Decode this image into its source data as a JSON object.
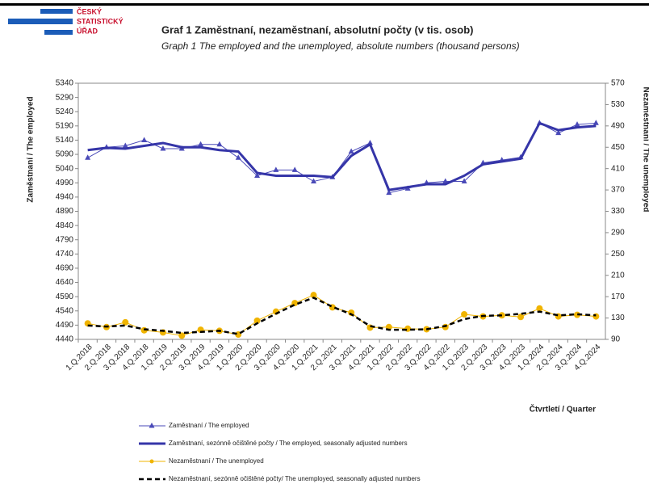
{
  "chart_data": {
    "type": "line",
    "logo": [
      "ČESKÝ",
      "STATISTICKÝ",
      "ÚŘAD"
    ],
    "title": "Graf 1  Zaměstnaní, nezaměstnaní, absolutní počty (v tis. osob)",
    "subtitle": "Graph 1  The employed and the unemployed, absolute numbers (thousand persons)",
    "ylabel": "Zaměstnaní / The employed",
    "y2label": "Nezaměstnaní / The unemployed",
    "xlabel": "Čtvrtletí  /  Quarter",
    "categories": [
      "1.Q.2018",
      "2.Q.2018",
      "3.Q.2018",
      "4.Q.2018",
      "1.Q.2019",
      "2.Q.2019",
      "3.Q.2019",
      "4.Q.2019",
      "1.Q.2020",
      "2.Q.2020",
      "3.Q.2020",
      "4.Q.2020",
      "1.Q.2021",
      "2.Q.2021",
      "3.Q.2021",
      "4.Q.2021",
      "1.Q.2022",
      "2.Q.2022",
      "3.Q.2022",
      "4.Q.2022",
      "1.Q.2023",
      "2.Q.2023",
      "3.Q.2023",
      "4.Q.2023",
      "1.Q.2024",
      "2.Q.2024",
      "3.Q.2024",
      "4.Q.2024"
    ],
    "ylim": [
      4440,
      5340
    ],
    "yticks": [
      4440,
      4490,
      4540,
      4590,
      4640,
      4690,
      4740,
      4790,
      4840,
      4890,
      4940,
      4990,
      5040,
      5090,
      5140,
      5190,
      5240,
      5290,
      5340
    ],
    "y2lim": [
      90,
      570
    ],
    "y2ticks": [
      90,
      130,
      170,
      210,
      250,
      290,
      330,
      370,
      410,
      450,
      490,
      530,
      570
    ],
    "series": [
      {
        "name": "Zaměstnaní / The employed",
        "color": "#4a4ab8",
        "marker": "triangle",
        "values": [
          5078,
          5115,
          5120,
          5140,
          5110,
          5110,
          5125,
          5125,
          5078,
          5015,
          5035,
          5035,
          4995,
          5010,
          5100,
          5130,
          4955,
          4970,
          4990,
          4995,
          4995,
          5060,
          5070,
          5080,
          5200,
          5165,
          5195,
          5200
        ]
      },
      {
        "name": "Zaměstnaní, sezónně očištěné počty / The employed, seasonally adjusted numbers",
        "color": "#3535a8",
        "values": [
          5105,
          5113,
          5110,
          5120,
          5130,
          5115,
          5115,
          5105,
          5100,
          5025,
          5015,
          5015,
          5015,
          5010,
          5085,
          5125,
          4965,
          4975,
          4985,
          4985,
          5015,
          5055,
          5065,
          5075,
          5200,
          5175,
          5185,
          5190
        ]
      },
      {
        "name": "Nezaměstnaní / The unemployed",
        "color": "#f0b400",
        "marker": "circle",
        "axis": "y2",
        "values": [
          120,
          113,
          122,
          107,
          103,
          97,
          108,
          106,
          99,
          125,
          142,
          158,
          173,
          150,
          140,
          112,
          113,
          110,
          109,
          113,
          137,
          133,
          135,
          132,
          148,
          133,
          136,
          133
        ]
      },
      {
        "name": "Nezaměstnaní, sezónně očištěné počty/ The unemployed, seasonally adjusted numbers",
        "color": "#000000",
        "dashed": true,
        "axis": "y2",
        "values": [
          116,
          114,
          116,
          109,
          106,
          102,
          104,
          106,
          100,
          120,
          138,
          155,
          168,
          151,
          137,
          115,
          108,
          108,
          109,
          115,
          128,
          134,
          135,
          138,
          142,
          135,
          137,
          135
        ]
      }
    ]
  }
}
